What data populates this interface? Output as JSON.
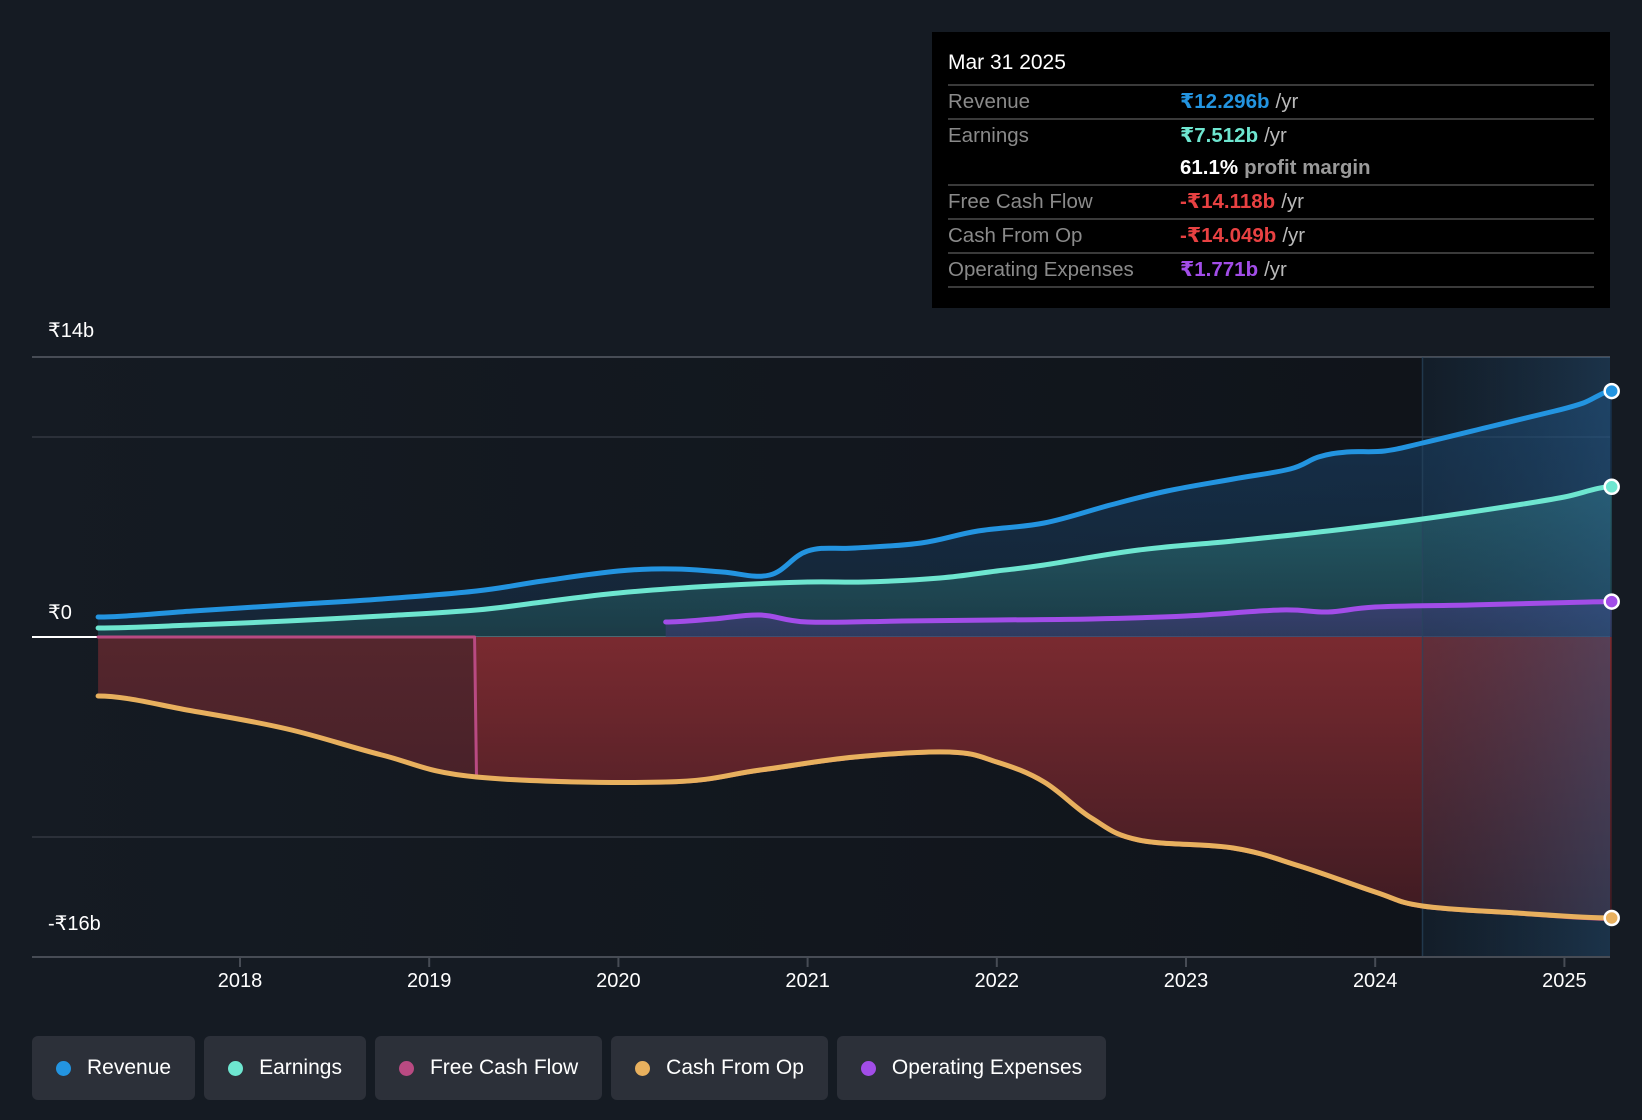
{
  "chart_data": {
    "type": "area",
    "title": "",
    "currency_symbol": "₹",
    "xlabel": "",
    "ylabel": "",
    "ylim": [
      -16,
      14
    ],
    "xlim": [
      2017.25,
      2025.25
    ],
    "y_ticks": [
      {
        "value": 14,
        "label": "₹14b"
      },
      {
        "value": 0,
        "label": "₹0"
      },
      {
        "value": -16,
        "label": "-₹16b"
      }
    ],
    "y_gridlines": [
      14,
      10,
      0,
      -10,
      -16
    ],
    "x_ticks": [
      {
        "value": 2018,
        "label": "2018"
      },
      {
        "value": 2019,
        "label": "2019"
      },
      {
        "value": 2020,
        "label": "2020"
      },
      {
        "value": 2021,
        "label": "2021"
      },
      {
        "value": 2022,
        "label": "2022"
      },
      {
        "value": 2023,
        "label": "2023"
      },
      {
        "value": 2024,
        "label": "2024"
      },
      {
        "value": 2025,
        "label": "2025"
      }
    ],
    "highlight_range": [
      2024.25,
      2025.25
    ],
    "units": "₹ billions / yr",
    "series": [
      {
        "name": "Revenue",
        "color": "#2394e0",
        "points": [
          [
            2017.25,
            1.0
          ],
          [
            2017.75,
            1.3
          ],
          [
            2018.25,
            1.6
          ],
          [
            2018.75,
            1.9
          ],
          [
            2019.25,
            2.3
          ],
          [
            2019.6,
            2.8
          ],
          [
            2020.0,
            3.3
          ],
          [
            2020.3,
            3.4
          ],
          [
            2020.55,
            3.25
          ],
          [
            2020.8,
            3.1
          ],
          [
            2021.0,
            4.3
          ],
          [
            2021.25,
            4.45
          ],
          [
            2021.6,
            4.7
          ],
          [
            2021.9,
            5.3
          ],
          [
            2022.25,
            5.7
          ],
          [
            2022.6,
            6.6
          ],
          [
            2022.9,
            7.3
          ],
          [
            2023.25,
            7.9
          ],
          [
            2023.55,
            8.4
          ],
          [
            2023.7,
            9.0
          ],
          [
            2023.85,
            9.25
          ],
          [
            2024.05,
            9.3
          ],
          [
            2024.25,
            9.7
          ],
          [
            2024.6,
            10.5
          ],
          [
            2024.95,
            11.3
          ],
          [
            2025.1,
            11.7
          ],
          [
            2025.25,
            12.296
          ]
        ]
      },
      {
        "name": "Earnings",
        "color": "#6ee6d0",
        "points": [
          [
            2017.25,
            0.45
          ],
          [
            2017.75,
            0.6
          ],
          [
            2018.25,
            0.8
          ],
          [
            2018.75,
            1.05
          ],
          [
            2019.25,
            1.35
          ],
          [
            2019.6,
            1.75
          ],
          [
            2020.0,
            2.2
          ],
          [
            2020.5,
            2.55
          ],
          [
            2021.0,
            2.75
          ],
          [
            2021.3,
            2.75
          ],
          [
            2021.7,
            2.95
          ],
          [
            2022.0,
            3.3
          ],
          [
            2022.25,
            3.6
          ],
          [
            2022.75,
            4.35
          ],
          [
            2023.25,
            4.8
          ],
          [
            2023.75,
            5.3
          ],
          [
            2024.25,
            5.9
          ],
          [
            2024.75,
            6.6
          ],
          [
            2025.0,
            7.0
          ],
          [
            2025.25,
            7.512
          ]
        ]
      },
      {
        "name": "Free Cash Flow",
        "color": "#b94a82",
        "points": [
          [
            2017.25,
            0.0
          ],
          [
            2019.24,
            0.0
          ],
          [
            2019.25,
            -7.05
          ],
          [
            2020.25,
            -7.3
          ],
          [
            2020.75,
            -6.7
          ],
          [
            2021.25,
            -6.05
          ],
          [
            2021.75,
            -5.8
          ],
          [
            2022.0,
            -6.3
          ],
          [
            2022.25,
            -7.3
          ],
          [
            2022.5,
            -9.1
          ],
          [
            2022.75,
            -10.2
          ],
          [
            2023.25,
            -10.6
          ],
          [
            2023.6,
            -11.5
          ],
          [
            2024.0,
            -12.8
          ],
          [
            2024.25,
            -13.5
          ],
          [
            2024.75,
            -13.85
          ],
          [
            2025.25,
            -14.118
          ]
        ]
      },
      {
        "name": "Cash From Op",
        "color": "#e8b05e",
        "points": [
          [
            2017.25,
            -2.95
          ],
          [
            2017.75,
            -3.7
          ],
          [
            2018.25,
            -4.6
          ],
          [
            2018.75,
            -5.9
          ],
          [
            2019.25,
            -7.0
          ],
          [
            2020.25,
            -7.25
          ],
          [
            2020.75,
            -6.65
          ],
          [
            2021.25,
            -6.0
          ],
          [
            2021.75,
            -5.75
          ],
          [
            2022.0,
            -6.25
          ],
          [
            2022.25,
            -7.25
          ],
          [
            2022.5,
            -9.05
          ],
          [
            2022.75,
            -10.15
          ],
          [
            2023.25,
            -10.55
          ],
          [
            2023.6,
            -11.45
          ],
          [
            2024.0,
            -12.75
          ],
          [
            2024.25,
            -13.45
          ],
          [
            2024.75,
            -13.8
          ],
          [
            2025.25,
            -14.049
          ]
        ]
      },
      {
        "name": "Operating Expenses",
        "color": "#a24de8",
        "points": [
          [
            2020.25,
            0.75
          ],
          [
            2020.5,
            0.9
          ],
          [
            2020.75,
            1.1
          ],
          [
            2021.0,
            0.75
          ],
          [
            2021.5,
            0.8
          ],
          [
            2022.0,
            0.85
          ],
          [
            2022.5,
            0.9
          ],
          [
            2023.0,
            1.05
          ],
          [
            2023.5,
            1.35
          ],
          [
            2023.75,
            1.25
          ],
          [
            2024.0,
            1.5
          ],
          [
            2024.5,
            1.6
          ],
          [
            2025.0,
            1.72
          ],
          [
            2025.25,
            1.771
          ]
        ]
      }
    ]
  },
  "tooltip": {
    "date": "Mar 31 2025",
    "rows": [
      {
        "label": "Revenue",
        "value": "₹12.296b",
        "unit": "/yr",
        "color": "#2394e0"
      },
      {
        "label": "Earnings",
        "value": "₹7.512b",
        "unit": "/yr",
        "color": "#6ee6d0"
      },
      {
        "label": "",
        "value": "61.1%",
        "unit": "profit margin",
        "color": "#ffffff"
      },
      {
        "label": "Free Cash Flow",
        "value": "-₹14.118b",
        "unit": "/yr",
        "color": "#e84142"
      },
      {
        "label": "Cash From Op",
        "value": "-₹14.049b",
        "unit": "/yr",
        "color": "#e84142"
      },
      {
        "label": "Operating Expenses",
        "value": "₹1.771b",
        "unit": "/yr",
        "color": "#a24de8"
      }
    ]
  },
  "legend": [
    {
      "label": "Revenue",
      "color": "#2394e0"
    },
    {
      "label": "Earnings",
      "color": "#6ee6d0"
    },
    {
      "label": "Free Cash Flow",
      "color": "#b94a82"
    },
    {
      "label": "Cash From Op",
      "color": "#e8b05e"
    },
    {
      "label": "Operating Expenses",
      "color": "#a24de8"
    }
  ]
}
